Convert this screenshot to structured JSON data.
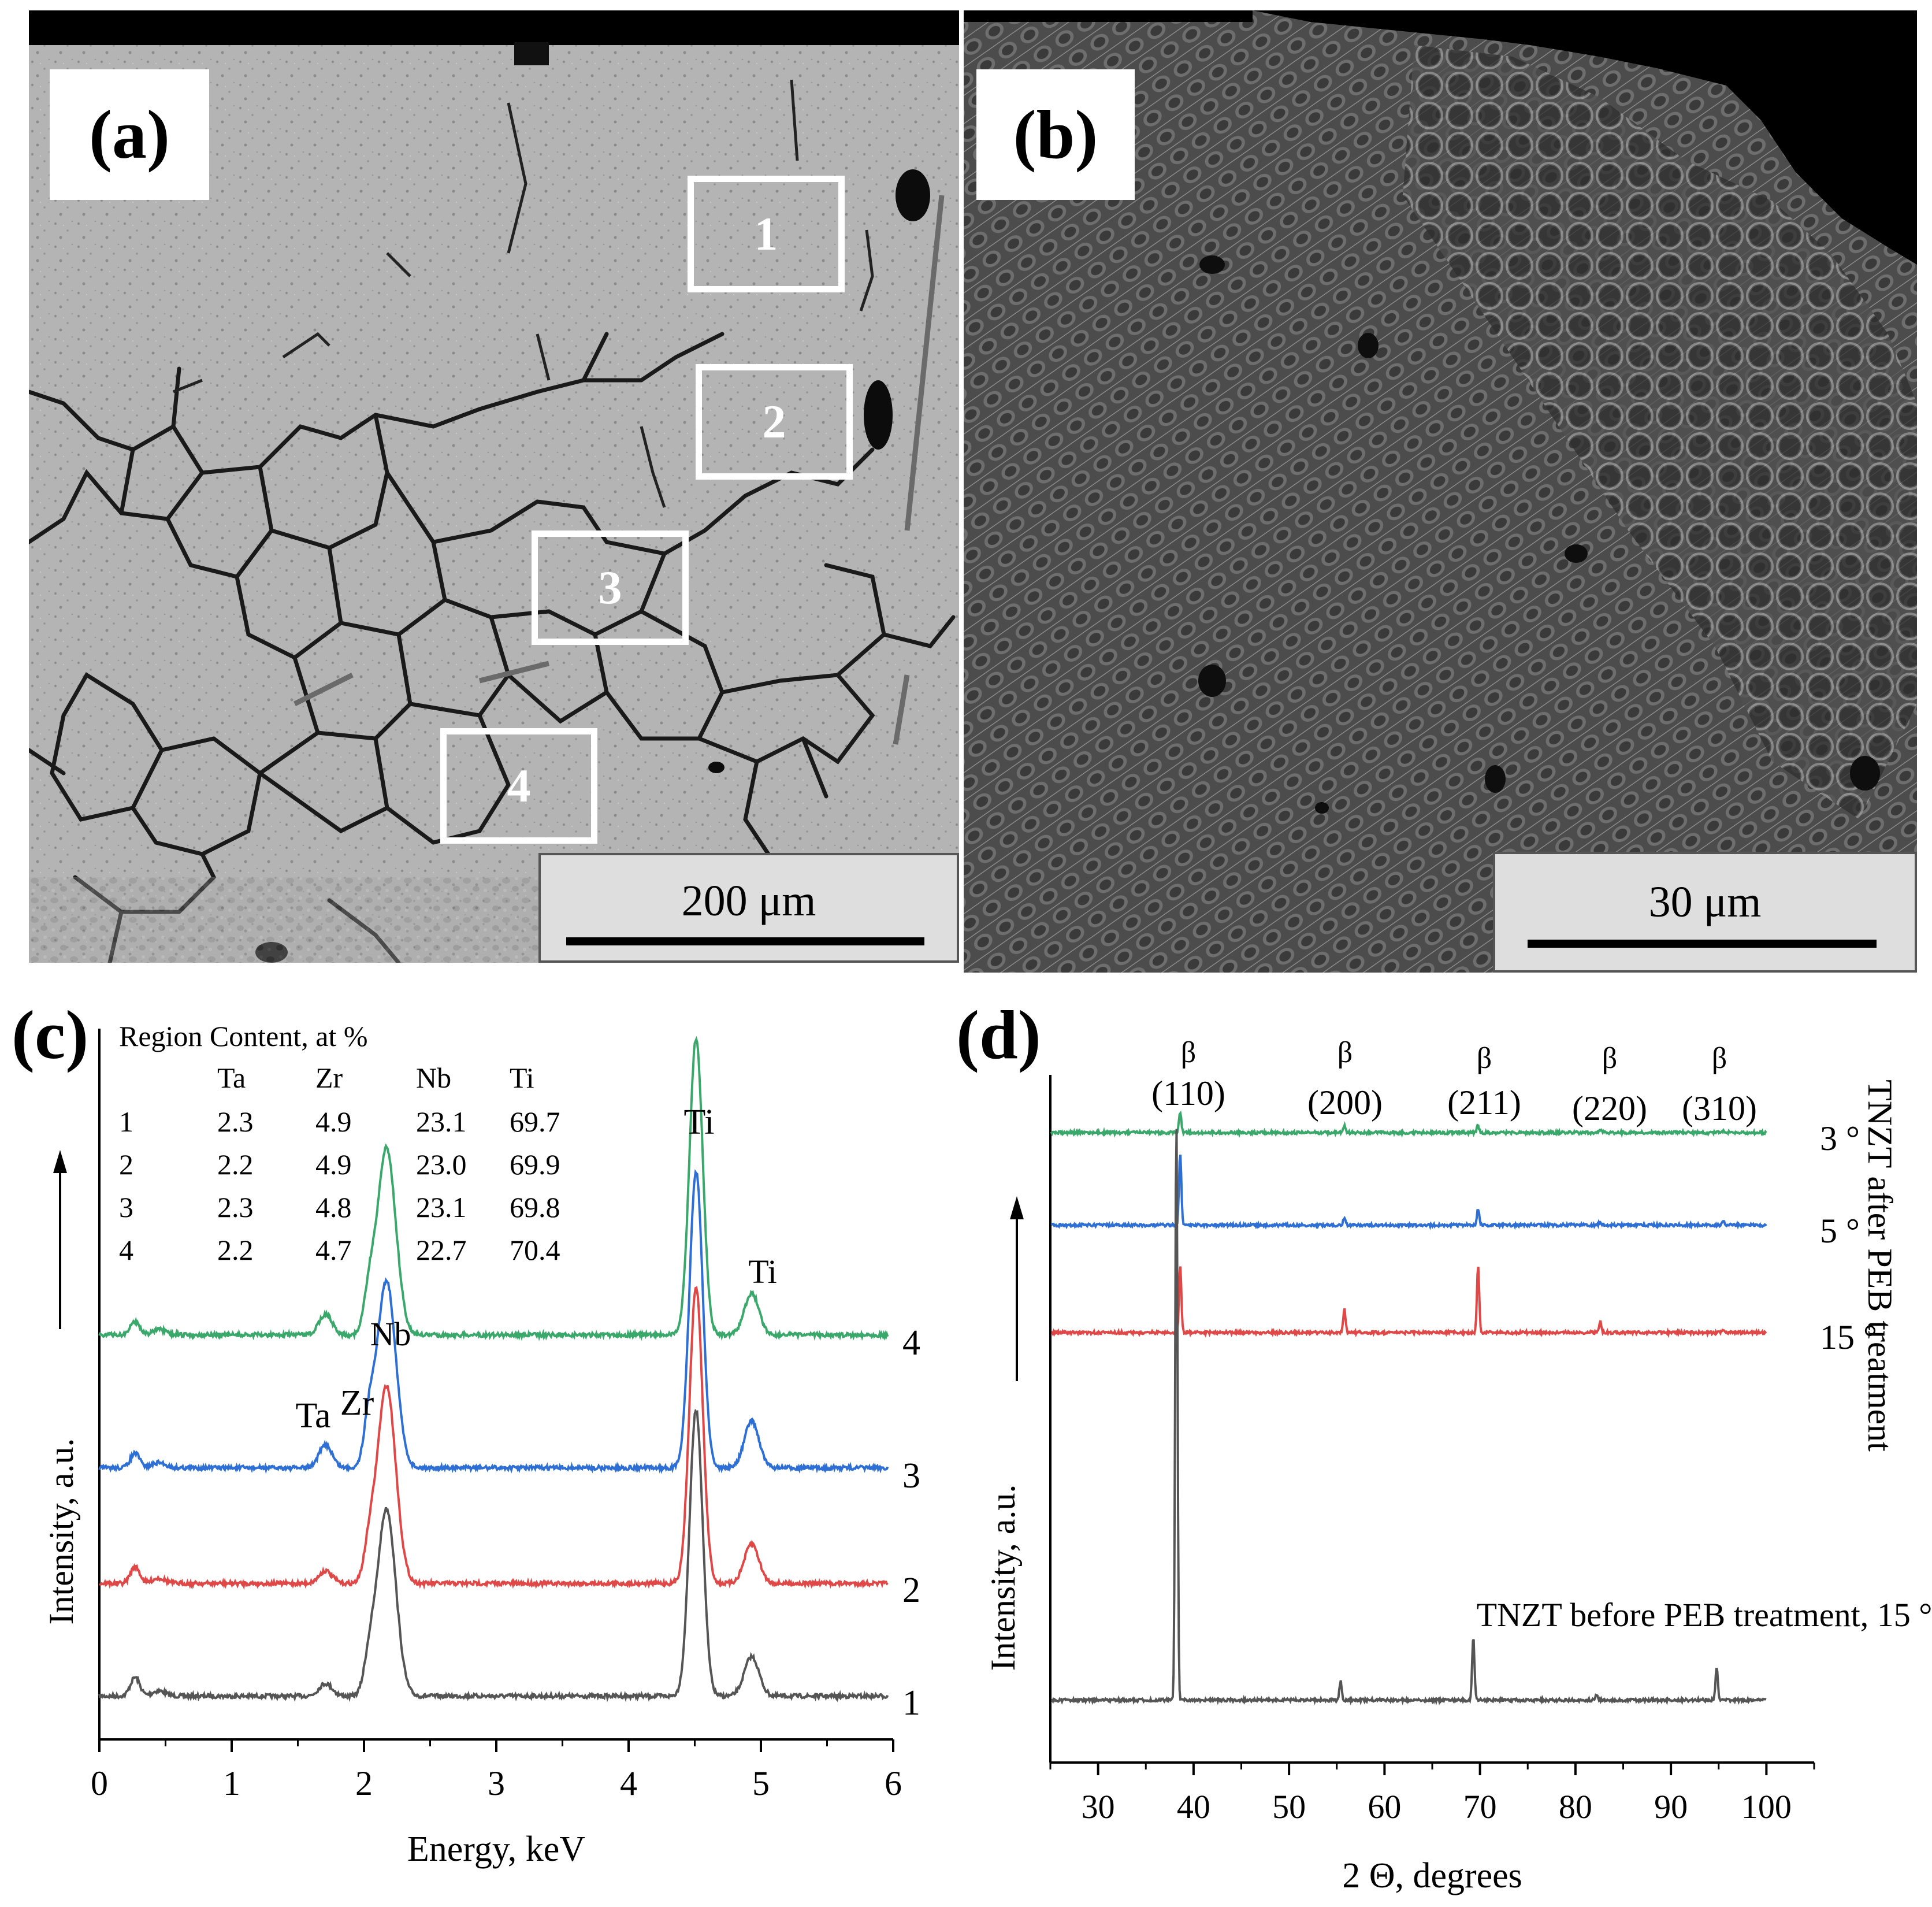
{
  "panel_a": {
    "label": "(a)",
    "regions": [
      "1",
      "2",
      "3",
      "4"
    ],
    "scale_label": "200 μm"
  },
  "panel_b": {
    "label": "(b)",
    "scale_label": "30 μm"
  },
  "panel_c": {
    "label": "(c)",
    "table": {
      "title": "Region Content, at %",
      "headers": [
        "Ta",
        "Zr",
        "Nb",
        "Ti"
      ],
      "rows": [
        [
          "1",
          "2.3",
          "4.9",
          "23.1",
          "69.7"
        ],
        [
          "2",
          "2.2",
          "4.9",
          "23.0",
          "69.9"
        ],
        [
          "3",
          "2.3",
          "4.8",
          "23.1",
          "69.8"
        ],
        [
          "4",
          "2.2",
          "4.7",
          "22.7",
          "70.4"
        ]
      ]
    },
    "peak_labels": [
      "Ti",
      "Ti",
      "Nb",
      "Zr",
      "Ta"
    ]
  },
  "panel_d": {
    "label": "(d)",
    "side_title": "TNZT after PEB treatment",
    "bottom_note": "TNZT before PEB treatment, 15 °"
  },
  "chart_data": [
    {
      "type": "line",
      "id": "c",
      "xlabel": "Energy, keV",
      "ylabel": "Intensity, a.u.",
      "xlim": [
        0,
        6
      ],
      "xticks": [
        0,
        1,
        2,
        3,
        4,
        5,
        6
      ],
      "peaks_keV": [
        0.27,
        1.71,
        2.04,
        2.17,
        4.51,
        4.93
      ],
      "series": [
        {
          "name": "1",
          "color": "#555555",
          "peak_heights": [
            0.18,
            0.12,
            0.3,
            1.8,
            2.75,
            0.38
          ]
        },
        {
          "name": "2",
          "color": "#e04848",
          "peak_heights": [
            0.16,
            0.12,
            0.3,
            1.9,
            2.85,
            0.38
          ]
        },
        {
          "name": "3",
          "color": "#2e6fd6",
          "peak_heights": [
            0.14,
            0.22,
            0.42,
            1.8,
            2.85,
            0.45
          ]
        },
        {
          "name": "4",
          "color": "#3aa86a",
          "peak_heights": [
            0.13,
            0.2,
            0.35,
            1.8,
            2.85,
            0.4
          ]
        }
      ]
    },
    {
      "type": "line",
      "id": "d",
      "xlabel": "2 Θ, degrees",
      "ylabel": "Intensity, a.u.",
      "xlim": [
        25,
        105
      ],
      "xticks": [
        30,
        40,
        50,
        60,
        70,
        80,
        90,
        100
      ],
      "reflections": [
        {
          "phase": "β",
          "hkl": "(110)",
          "two_theta": 38.6
        },
        {
          "phase": "β",
          "hkl": "(200)",
          "two_theta": 55.8
        },
        {
          "phase": "β",
          "hkl": "(211)",
          "two_theta": 69.8
        },
        {
          "phase": "β",
          "hkl": "(220)",
          "two_theta": 82.6
        },
        {
          "phase": "β",
          "hkl": "(310)",
          "two_theta": 95.5
        }
      ],
      "series": [
        {
          "name": "3 °",
          "color": "#3aa86a",
          "peaks": [
            [
              38.6,
              0.6
            ],
            [
              55.8,
              0.2
            ],
            [
              69.8,
              0.2
            ],
            [
              82.6,
              0.08
            ],
            [
              95.5,
              0.05
            ]
          ]
        },
        {
          "name": "5 °",
          "color": "#2e6fd6",
          "peaks": [
            [
              38.6,
              1.4
            ],
            [
              55.8,
              0.15
            ],
            [
              69.8,
              0.3
            ],
            [
              82.6,
              0.06
            ],
            [
              95.5,
              0.08
            ]
          ]
        },
        {
          "name": "15 °",
          "color": "#e04848",
          "peaks": [
            [
              38.6,
              1.45
            ],
            [
              55.8,
              0.5
            ],
            [
              69.8,
              1.45
            ],
            [
              82.6,
              0.25
            ],
            [
              95.5,
              0.06
            ]
          ]
        },
        {
          "name": "",
          "color": "#555555",
          "peaks": [
            [
              38.2,
              7.7
            ],
            [
              55.4,
              0.25
            ],
            [
              69.3,
              0.85
            ],
            [
              82.2,
              0.08
            ],
            [
              94.8,
              0.45
            ]
          ]
        }
      ]
    }
  ]
}
